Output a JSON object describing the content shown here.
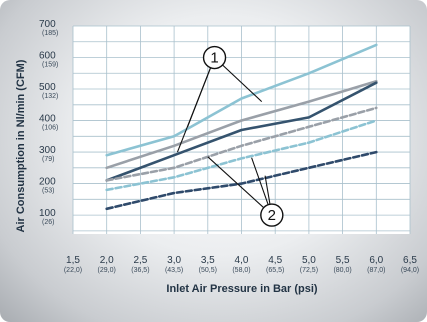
{
  "chart_data": {
    "type": "line",
    "xlabel": "Inlet Air Pressure in Bar (psi)",
    "ylabel": "Air Consumption in Nl/min (CFM)",
    "xlim": [
      1.5,
      6.5
    ],
    "ylim": [
      40,
      700
    ],
    "grid": true,
    "x_ticks": [
      {
        "value": 1.5,
        "main": "1,5",
        "sub": "(22,0)"
      },
      {
        "value": 2.0,
        "main": "2,0",
        "sub": "(29,0)"
      },
      {
        "value": 2.5,
        "main": "2,5",
        "sub": "(36,5)"
      },
      {
        "value": 3.0,
        "main": "3,0",
        "sub": "(43,5)"
      },
      {
        "value": 3.5,
        "main": "3,5",
        "sub": "(50,5)"
      },
      {
        "value": 4.0,
        "main": "4,0",
        "sub": "(58,0)"
      },
      {
        "value": 4.5,
        "main": "4,5",
        "sub": "(65,5)"
      },
      {
        "value": 5.0,
        "main": "5,0",
        "sub": "(72,5)"
      },
      {
        "value": 5.5,
        "main": "5,5",
        "sub": "(80,0)"
      },
      {
        "value": 6.0,
        "main": "6,0",
        "sub": "(87,0)"
      },
      {
        "value": 6.5,
        "main": "6,5",
        "sub": "(94,0)"
      }
    ],
    "y_ticks": [
      {
        "value": 700,
        "main": "700",
        "sub": "(185)"
      },
      {
        "value": 600,
        "main": "600",
        "sub": "(159)"
      },
      {
        "value": 500,
        "main": "500",
        "sub": "(132)"
      },
      {
        "value": 400,
        "main": "400",
        "sub": "(106)"
      },
      {
        "value": 300,
        "main": "300",
        "sub": "(79)"
      },
      {
        "value": 200,
        "main": "200",
        "sub": "(53)"
      },
      {
        "value": 100,
        "main": "100",
        "sub": "(26)"
      }
    ],
    "series": [
      {
        "color": "#8cc3d3",
        "dashed": false,
        "x": [
          2.0,
          3.0,
          4.0,
          5.0,
          6.0
        ],
        "y": [
          290,
          350,
          470,
          550,
          640
        ]
      },
      {
        "color": "#9aa0a8",
        "dashed": false,
        "x": [
          2.0,
          3.0,
          4.0,
          5.0,
          6.0
        ],
        "y": [
          250,
          320,
          400,
          460,
          525
        ]
      },
      {
        "color": "#35536e",
        "dashed": false,
        "x": [
          2.0,
          3.0,
          4.0,
          5.0,
          6.0
        ],
        "y": [
          210,
          290,
          370,
          410,
          520
        ]
      },
      {
        "color": "#9aa0a8",
        "dashed": true,
        "x": [
          2.0,
          3.0,
          4.0,
          5.0,
          6.0
        ],
        "y": [
          210,
          250,
          320,
          380,
          440
        ]
      },
      {
        "color": "#8cc3d3",
        "dashed": true,
        "x": [
          2.0,
          3.0,
          4.0,
          5.0,
          6.0
        ],
        "y": [
          180,
          220,
          280,
          330,
          400
        ]
      },
      {
        "color": "#2f4a6b",
        "dashed": true,
        "x": [
          2.0,
          3.0,
          4.0,
          5.0,
          6.0
        ],
        "y": [
          120,
          170,
          200,
          250,
          300
        ]
      }
    ],
    "annotations": [
      {
        "label": "1",
        "x": 3.6,
        "y": 600,
        "points_to": [
          {
            "x": 3.2,
            "y": 380
          },
          {
            "x": 3.05,
            "y": 300
          },
          {
            "x": 4.3,
            "y": 460
          }
        ]
      },
      {
        "label": "2",
        "x": 4.45,
        "y": 100,
        "points_to": [
          {
            "x": 3.5,
            "y": 285
          },
          {
            "x": 4.15,
            "y": 282
          },
          {
            "x": 4.35,
            "y": 225
          }
        ]
      }
    ]
  }
}
